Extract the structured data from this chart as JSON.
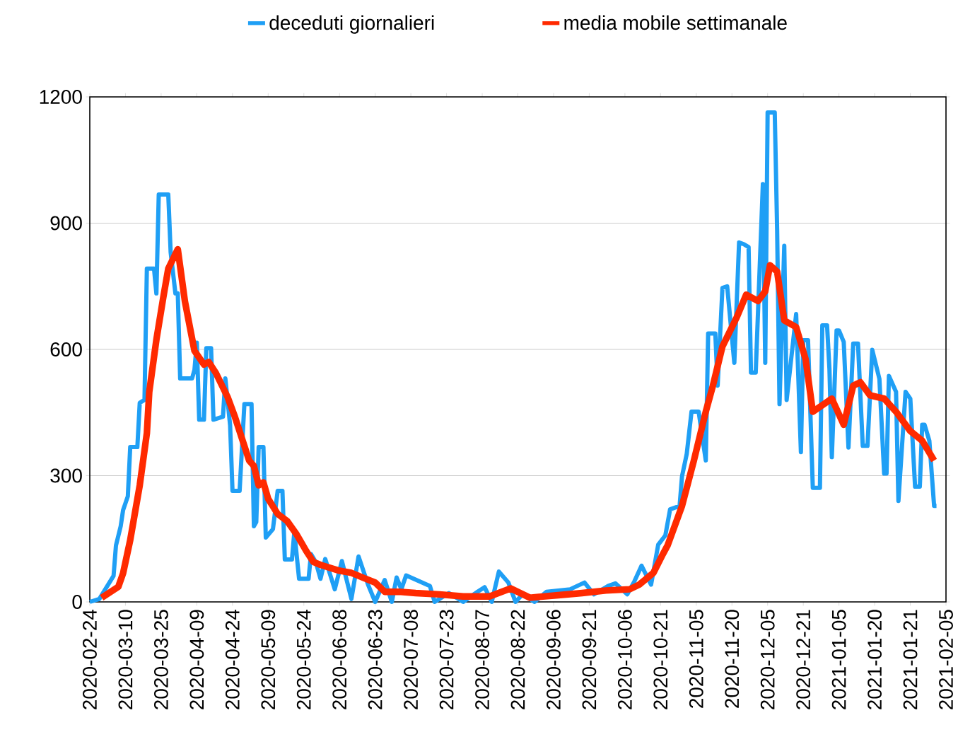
{
  "chart_data": {
    "type": "line",
    "ylim": [
      0,
      1200
    ],
    "yticks": [
      0,
      300,
      600,
      900,
      1200
    ],
    "grid": "y",
    "legend": "top",
    "categories": [
      "2020-02-24",
      null,
      null,
      null,
      null,
      null,
      null,
      null,
      null,
      null,
      null,
      null,
      null,
      null,
      null,
      "2020-03-10",
      null,
      null,
      null,
      null,
      null,
      null,
      null,
      null,
      null,
      null,
      null,
      null,
      null,
      null,
      "2020-03-25",
      null,
      null,
      null,
      null,
      null,
      null,
      null,
      null,
      null,
      null,
      null,
      null,
      null,
      null,
      "2020-04-09",
      null,
      null,
      null,
      null,
      null,
      null,
      null,
      null,
      null,
      null,
      null,
      null,
      null,
      null,
      "2020-04-24",
      null,
      null,
      null,
      null,
      null,
      null,
      null,
      null,
      null,
      null,
      null,
      null,
      null,
      null,
      "2020-05-09",
      null,
      null,
      null,
      null,
      null,
      null,
      null,
      null,
      null,
      null,
      null,
      null,
      null,
      null,
      "2020-05-24",
      null,
      null,
      null,
      null,
      null,
      null,
      null,
      null,
      null,
      null,
      null,
      null,
      null,
      null,
      "2020-06-08",
      null,
      null,
      null,
      null,
      null,
      null,
      null,
      null,
      null,
      null,
      null,
      null,
      null,
      null,
      "2020-06-23",
      null,
      null,
      null,
      null,
      null,
      null,
      null,
      null,
      null,
      null,
      null,
      null,
      null,
      null,
      "2020-07-08",
      null,
      null,
      null,
      null,
      null,
      null,
      null,
      null,
      null,
      null,
      null,
      null,
      null,
      null,
      "2020-07-23",
      null,
      null,
      null,
      null,
      null,
      null,
      null,
      null,
      null,
      null,
      null,
      null,
      null,
      null,
      "2020-08-07",
      null,
      null,
      null,
      null,
      null,
      null,
      null,
      null,
      null,
      null,
      null,
      null,
      null,
      null,
      "2020-08-22",
      null,
      null,
      null,
      null,
      null,
      null,
      null,
      null,
      null,
      null,
      null,
      null,
      null,
      null,
      "2020-09-06",
      null,
      null,
      null,
      null,
      null,
      null,
      null,
      null,
      null,
      null,
      null,
      null,
      null,
      null,
      "2020-09-21",
      null,
      null,
      null,
      null,
      null,
      null,
      null,
      null,
      null,
      null,
      null,
      null,
      null,
      null,
      "2020-10-06",
      null,
      null,
      null,
      null,
      null,
      null,
      null,
      null,
      null,
      null,
      null,
      null,
      null,
      null,
      "2020-10-21",
      null,
      null,
      null,
      null,
      null,
      null,
      null,
      null,
      null,
      null,
      null,
      null,
      null,
      null,
      "2020-11-05",
      null,
      null,
      null,
      null,
      null,
      null,
      null,
      null,
      null,
      null,
      null,
      null,
      null,
      null,
      "2020-11-20",
      null,
      null,
      null,
      null,
      null,
      null,
      null,
      null,
      null,
      null,
      null,
      null,
      null,
      null,
      "2020-12-05",
      null,
      null,
      null,
      null,
      null,
      null,
      null,
      null,
      null,
      null,
      null,
      null,
      null,
      null,
      "2020-12-21",
      null,
      null,
      null,
      null,
      null,
      null,
      null,
      null,
      null,
      null,
      null,
      null,
      null,
      null,
      "2021-01-05",
      null,
      null,
      null,
      null,
      null,
      null,
      null,
      null,
      null,
      null,
      null,
      null,
      null,
      null,
      "2021-01-20",
      null,
      null,
      null,
      null,
      null,
      null,
      null,
      null,
      null,
      null,
      null,
      null,
      null,
      null,
      "2021-01-21",
      null,
      null,
      null,
      null,
      null,
      null,
      null,
      null,
      null,
      null,
      null,
      null,
      null,
      null,
      "2021-02-05"
    ],
    "series": [
      {
        "name": "deceduti giornalieri",
        "color": "#1f9ff5",
        "values": [
          0,
          null,
          null,
          null,
          7,
          null,
          null,
          null,
          null,
          null,
          62,
          134,
          null,
          180,
          218,
          null,
          251,
          368,
          null,
          null,
          368,
          473,
          null,
          480,
          792,
          null,
          null,
          792,
          733,
          968,
          null,
          null,
          null,
          968,
          831,
          null,
          733,
          733,
          531,
          null,
          null,
          null,
          null,
          531,
          551,
          616,
          433,
          null,
          433,
          603,
          null,
          603,
          433,
          null,
          null,
          null,
          440,
          531,
          null,
          420,
          264,
          null,
          null,
          264,
          null,
          470,
          null,
          null,
          470,
          180,
          190,
          368,
          null,
          368,
          153,
          null,
          null,
          173,
          null,
          264,
          null,
          264,
          101,
          null,
          null,
          101,
          166,
          null,
          55,
          null,
          null,
          null,
          55,
          114,
          null,
          95,
          null,
          55,
          null,
          102,
          null,
          null,
          null,
          30,
          null,
          null,
          97,
          null,
          null,
          null,
          7,
          null,
          null,
          108,
          null,
          null,
          null,
          41,
          null,
          null,
          0,
          null,
          null,
          null,
          52,
          null,
          null,
          0,
          null,
          58,
          null,
          30,
          null,
          63,
          null,
          null,
          null,
          null,
          null,
          null,
          null,
          null,
          null,
          38,
          null,
          0,
          null,
          null,
          null,
          null,
          null,
          21,
          null,
          null,
          null,
          null,
          null,
          0,
          null,
          null,
          null,
          null,
          null,
          24,
          null,
          null,
          35,
          null,
          null,
          0,
          null,
          null,
          72,
          null,
          null,
          null,
          46,
          null,
          null,
          0,
          null,
          null,
          18,
          null,
          null,
          null,
          null,
          0,
          null,
          null,
          null,
          null,
          24,
          null,
          null,
          null,
          null,
          null,
          null,
          null,
          null,
          null,
          30,
          null,
          null,
          null,
          null,
          null,
          46,
          null,
          null,
          null,
          18,
          null,
          null,
          null,
          null,
          null,
          38,
          null,
          null,
          44,
          null,
          null,
          null,
          null,
          18,
          null,
          null,
          49,
          null,
          null,
          86,
          null,
          null,
          null,
          41,
          null,
          null,
          136,
          null,
          null,
          158,
          null,
          220,
          null,
          null,
          null,
          228,
          298,
          null,
          352,
          null,
          452,
          null,
          null,
          452,
          null,
          null,
          336,
          638,
          null,
          null,
          638,
          514,
          null,
          746,
          null,
          750,
          null,
          null,
          568,
          null,
          854,
          null,
          850,
          null,
          843,
          545,
          null,
          545,
          null,
          null,
          993,
          568,
          1163,
          null,
          null,
          1163,
          885,
          470,
          null,
          846,
          480,
          null,
          null,
          null,
          684,
          null,
          356,
          622,
          null,
          622,
          null,
          271,
          null,
          null,
          271,
          657,
          null,
          657,
          553,
          344,
          null,
          645,
          645,
          null,
          618,
          null,
          367,
          null,
          614,
          null,
          614,
          null,
          371,
          null,
          371,
          null,
          599,
          null,
          null,
          530,
          null,
          305,
          305,
          537,
          null,
          null,
          499,
          240,
          null,
          null,
          499,
          null,
          483,
          null,
          274,
          null,
          274,
          421,
          421,
          null,
          383,
          null,
          228,
          228,
          null,
          null,
          null,
          null
        ]
      },
      {
        "name": "media mobile settimanale",
        "color": "#ff2a00",
        "values": [
          null,
          null,
          null,
          null,
          null,
          10,
          null,
          null,
          null,
          null,
          null,
          null,
          36,
          null,
          68,
          null,
          null,
          147,
          null,
          null,
          null,
          277,
          null,
          null,
          401,
          499,
          null,
          null,
          623,
          null,
          null,
          727,
          null,
          792,
          null,
          null,
          null,
          838,
          null,
          null,
          714,
          null,
          null,
          null,
          597,
          null,
          null,
          null,
          564,
          null,
          570,
          null,
          null,
          544,
          null,
          null,
          null,
          null,
          486,
          null,
          null,
          440,
          null,
          null,
          null,
          null,
          null,
          336,
          null,
          323,
          null,
          277,
          null,
          284,
          null,
          245,
          null,
          null,
          null,
          209,
          null,
          null,
          null,
          192,
          null,
          null,
          null,
          160,
          null,
          null,
          null,
          121,
          null,
          null,
          95,
          null,
          null,
          88,
          null,
          null,
          null,
          null,
          null,
          null,
          null,
          74,
          null,
          null,
          null,
          null,
          69,
          null,
          null,
          null,
          null,
          null,
          55,
          null,
          null,
          null,
          46,
          null,
          null,
          null,
          24,
          null,
          null,
          null,
          null,
          null,
          24,
          null,
          null,
          null,
          null,
          null,
          null,
          21,
          null,
          null,
          null,
          null,
          null,
          null,
          null,
          null,
          null,
          18,
          null,
          null,
          null,
          null,
          null,
          null,
          null,
          null,
          null,
          13,
          null,
          null,
          null,
          null,
          null,
          null,
          null,
          null,
          null,
          null,
          13,
          null,
          null,
          null,
          null,
          null,
          null,
          null,
          null,
          32,
          null,
          null,
          null,
          null,
          null,
          null,
          null,
          10,
          null,
          null,
          null,
          null,
          null,
          null,
          null,
          null,
          null,
          null,
          null,
          16,
          null,
          null,
          null,
          null,
          null,
          null,
          null,
          null,
          null,
          21,
          null,
          null,
          null,
          null,
          null,
          null,
          null,
          null,
          null,
          27,
          null,
          null,
          null,
          null,
          null,
          null,
          null,
          null,
          null,
          30,
          null,
          null,
          null,
          41,
          null,
          null,
          null,
          null,
          null,
          69,
          null,
          null,
          null,
          114,
          null,
          135,
          null,
          null,
          null,
          null,
          null,
          228,
          null,
          null,
          null,
          null,
          336,
          null,
          null,
          null,
          null,
          452,
          null,
          null,
          514,
          null,
          null,
          null,
          607,
          null,
          null,
          null,
          null,
          null,
          676,
          null,
          null,
          null,
          730,
          null,
          null,
          null,
          null,
          715,
          null,
          null,
          738,
          null,
          800,
          null,
          null,
          785,
          null,
          null,
          669,
          null,
          null,
          null,
          null,
          653,
          null,
          null,
          null,
          576,
          null,
          null,
          452,
          null,
          null,
          null,
          null,
          null,
          null,
          null,
          483,
          null,
          null,
          null,
          null,
          421,
          null,
          null,
          null,
          514,
          null,
          null,
          522,
          null,
          null,
          null,
          491,
          null,
          null,
          null,
          null,
          null,
          483,
          null,
          null,
          null,
          null,
          452,
          null,
          null,
          null,
          null,
          null,
          406,
          null,
          null,
          null,
          null,
          383,
          null,
          null,
          null,
          null,
          336,
          null,
          null,
          null,
          null,
          null
        ]
      }
    ]
  }
}
